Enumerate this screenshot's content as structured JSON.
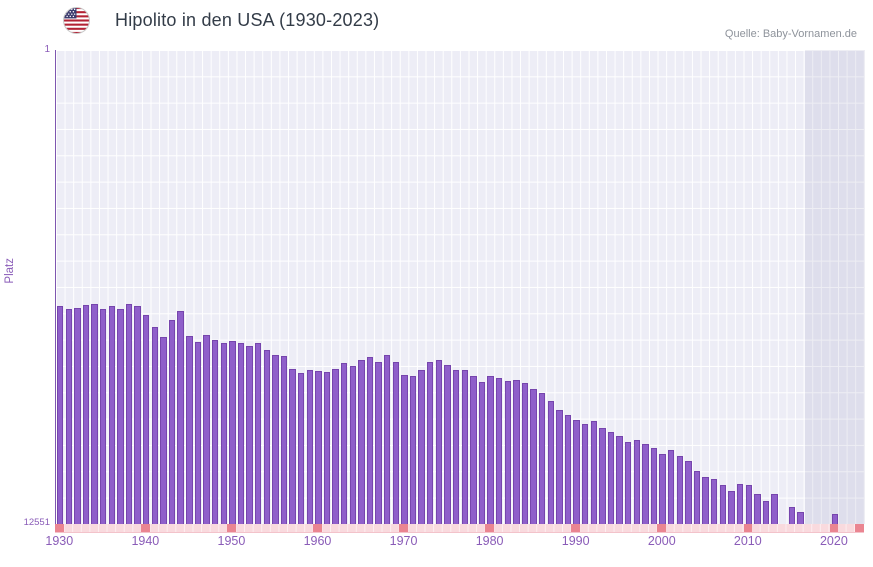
{
  "header": {
    "title": "Hipolito in den USA (1930-2023)",
    "source": "Quelle: Baby-Vornamen.de",
    "flag_icon": "us-flag-icon"
  },
  "chart_data": {
    "type": "bar",
    "title": "Hipolito in den USA (1930-2023)",
    "xlabel": "",
    "ylabel": "Platz",
    "y_axis": {
      "top_label": "1",
      "bottom_label": "12551",
      "min": 1,
      "max": 12551,
      "scale": "log",
      "inverted": true
    },
    "x_ticks": [
      1930,
      1940,
      1950,
      1960,
      1970,
      1980,
      1990,
      2000,
      2010,
      2020
    ],
    "years": [
      1930,
      1931,
      1932,
      1933,
      1934,
      1935,
      1936,
      1937,
      1938,
      1939,
      1940,
      1941,
      1942,
      1943,
      1944,
      1945,
      1946,
      1947,
      1948,
      1949,
      1950,
      1951,
      1952,
      1953,
      1954,
      1955,
      1956,
      1957,
      1958,
      1959,
      1960,
      1961,
      1962,
      1963,
      1964,
      1965,
      1966,
      1967,
      1968,
      1969,
      1970,
      1971,
      1972,
      1973,
      1974,
      1975,
      1976,
      1977,
      1978,
      1979,
      1980,
      1981,
      1982,
      1983,
      1984,
      1985,
      1986,
      1987,
      1988,
      1989,
      1990,
      1991,
      1992,
      1993,
      1994,
      1995,
      1996,
      1997,
      1998,
      1999,
      2000,
      2001,
      2002,
      2003,
      2004,
      2005,
      2006,
      2007,
      2008,
      2009,
      2010,
      2011,
      2012,
      2013,
      2014,
      2015,
      2016,
      2017,
      2018,
      2019,
      2020,
      2021,
      2022,
      2023
    ],
    "ranks": [
      165,
      172,
      170,
      159,
      156,
      172,
      162,
      172,
      156,
      162,
      197,
      246,
      306,
      214,
      179,
      300,
      338,
      294,
      324,
      344,
      331,
      344,
      366,
      344,
      396,
      437,
      446,
      577,
      625,
      589,
      601,
      613,
      577,
      513,
      544,
      483,
      455,
      494,
      437,
      494,
      651,
      664,
      589,
      503,
      483,
      533,
      589,
      589,
      664,
      748,
      664,
      690,
      729,
      716,
      761,
      859,
      930,
      1090,
      1303,
      1439,
      1590,
      1721,
      1627,
      1863,
      2017,
      2184,
      2460,
      2364,
      2561,
      2772,
      3123,
      2902,
      3249,
      3589,
      4377,
      4931,
      5131,
      5781,
      6513,
      5648,
      5781,
      6912,
      7943,
      6912,
      null,
      8900,
      9800,
      null,
      null,
      null,
      10200,
      null,
      null,
      null
    ],
    "no_data_band": {
      "start_year": 2017,
      "end_year": 2023
    },
    "legend": "none",
    "grid": "on",
    "bar_color": "#8f5fca",
    "band_color": "#e4e4ef",
    "strip_color": "#f9dade",
    "tick_mark_color": "#ea8591"
  }
}
